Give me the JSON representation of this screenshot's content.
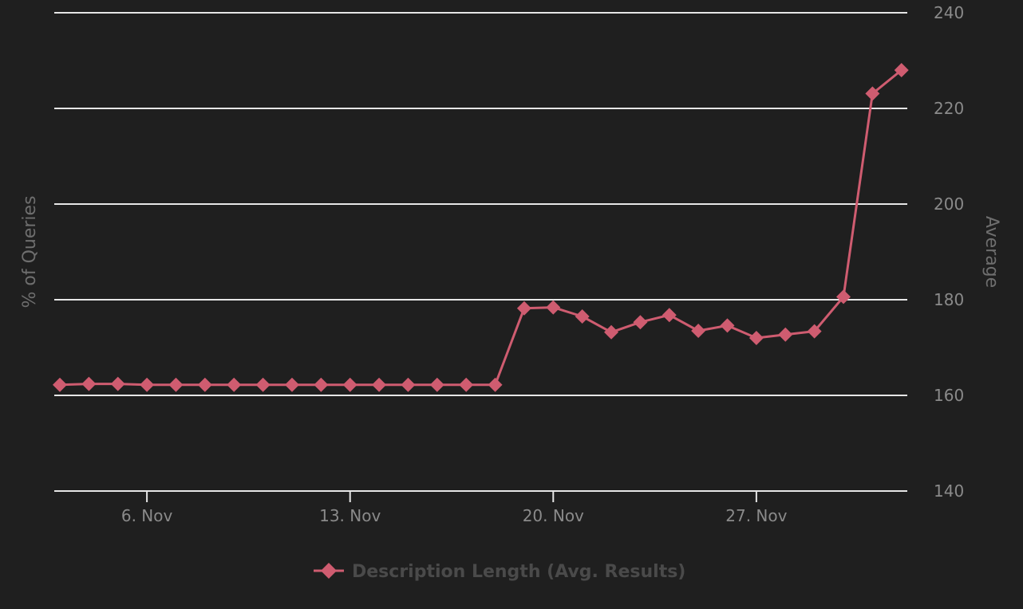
{
  "chart_data": {
    "type": "line",
    "x": [
      "3. Nov",
      "4. Nov",
      "5. Nov",
      "6. Nov",
      "7. Nov",
      "8. Nov",
      "9. Nov",
      "10. Nov",
      "11. Nov",
      "12. Nov",
      "13. Nov",
      "14. Nov",
      "15. Nov",
      "16. Nov",
      "17. Nov",
      "18. Nov",
      "19. Nov",
      "20. Nov",
      "21. Nov",
      "22. Nov",
      "23. Nov",
      "24. Nov",
      "25. Nov",
      "26. Nov",
      "27. Nov",
      "28. Nov",
      "29. Nov",
      "30. Nov",
      "1. Dec",
      "2. Dec"
    ],
    "x_tick_labels": [
      "6. Nov",
      "13. Nov",
      "20. Nov",
      "27. Nov"
    ],
    "series": [
      {
        "name": "Description Length (Avg. Results)",
        "color": "#cf5c70",
        "marker": "diamond",
        "values": [
          162.2,
          162.4,
          162.4,
          162.2,
          162.2,
          162.2,
          162.2,
          162.2,
          162.2,
          162.2,
          162.2,
          162.2,
          162.2,
          162.2,
          162.2,
          162.2,
          178.2,
          178.4,
          176.5,
          173.2,
          175.3,
          176.8,
          173.5,
          174.6,
          172.0,
          172.7,
          173.4,
          180.6,
          223.1,
          228.0
        ]
      }
    ],
    "ylabel_left": "% of Queries",
    "ylabel_right": "Average",
    "y_right_ticks": [
      140,
      160,
      180,
      200,
      220,
      240
    ],
    "ylim": [
      140,
      240
    ],
    "grid": true,
    "legend_position": "bottom-center",
    "colors": {
      "background": "#1f1f1f",
      "grid": "#e6e6e6",
      "tick_text": "#8a8a8a",
      "axis_title": "#6e6e6e",
      "legend_text": "#4a4a4a"
    }
  }
}
